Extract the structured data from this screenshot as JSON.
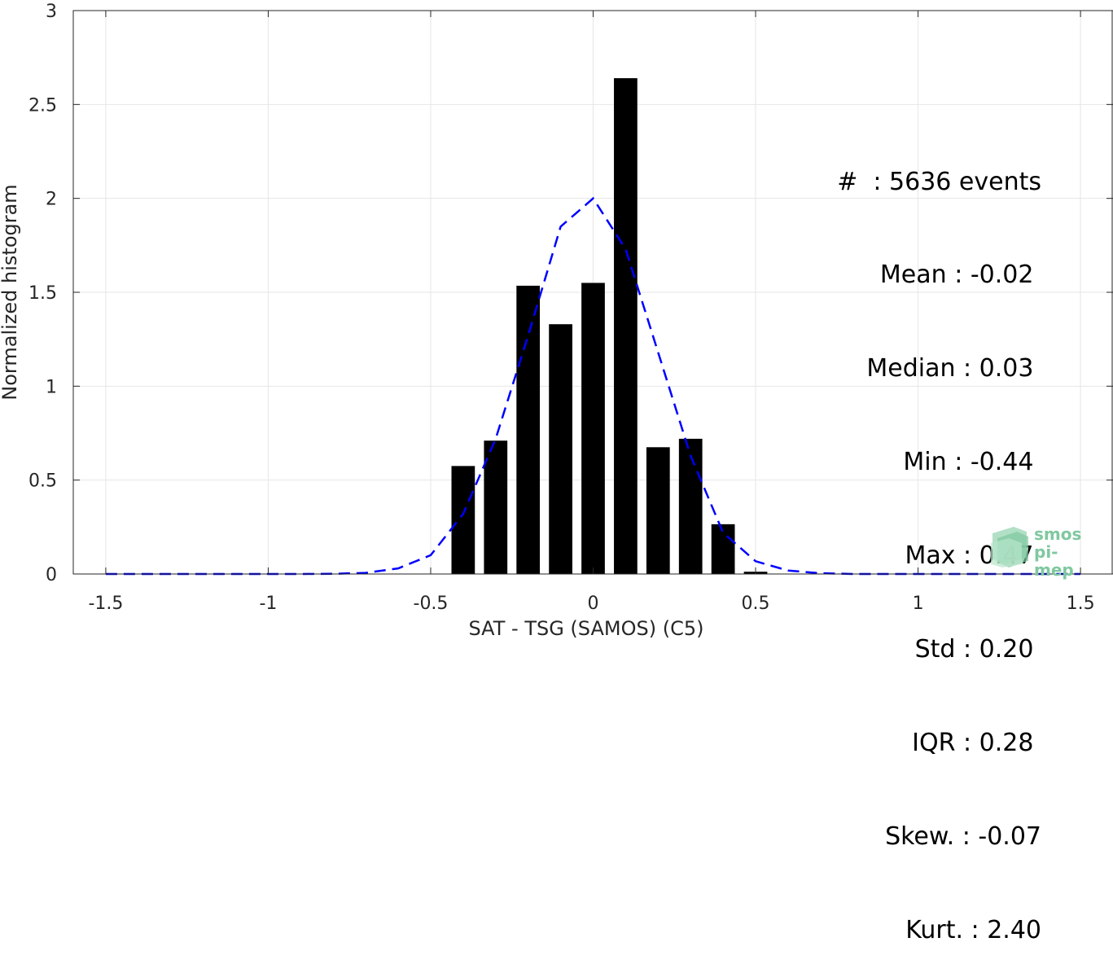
{
  "chart_data": {
    "type": "bar",
    "xlabel": "SAT - TSG (SAMOS) (C5)",
    "ylabel": "Normalized histogram",
    "xlim": [
      -1.6,
      1.6
    ],
    "ylim": [
      0,
      3
    ],
    "xticks": [
      "-1.5",
      "-1",
      "-0.5",
      "0",
      "0.5",
      "1",
      "1.5"
    ],
    "yticks": [
      "0",
      "0.5",
      "1",
      "1.5",
      "2",
      "2.5",
      "3"
    ],
    "grid": true,
    "bar_color": "#000000",
    "bars": [
      {
        "x": -0.4,
        "y": 0.575
      },
      {
        "x": -0.3,
        "y": 0.71
      },
      {
        "x": -0.2,
        "y": 1.535
      },
      {
        "x": -0.1,
        "y": 1.33
      },
      {
        "x": 0.0,
        "y": 1.55
      },
      {
        "x": 0.1,
        "y": 2.64
      },
      {
        "x": 0.2,
        "y": 0.675
      },
      {
        "x": 0.3,
        "y": 0.72
      },
      {
        "x": 0.4,
        "y": 0.265
      },
      {
        "x": 0.5,
        "y": 0.012
      }
    ],
    "fit_color": "#0000ff",
    "fit_curve": [
      {
        "x": -1.5,
        "y": 0.0
      },
      {
        "x": -1.4,
        "y": 0.0
      },
      {
        "x": -1.3,
        "y": 0.0
      },
      {
        "x": -1.2,
        "y": 0.0
      },
      {
        "x": -1.1,
        "y": 0.0
      },
      {
        "x": -1.0,
        "y": 0.0
      },
      {
        "x": -0.9,
        "y": 0.0
      },
      {
        "x": -0.8,
        "y": 0.001
      },
      {
        "x": -0.7,
        "y": 0.006
      },
      {
        "x": -0.6,
        "y": 0.03
      },
      {
        "x": -0.5,
        "y": 0.1
      },
      {
        "x": -0.4,
        "y": 0.32
      },
      {
        "x": -0.3,
        "y": 0.72
      },
      {
        "x": -0.2,
        "y": 1.27
      },
      {
        "x": -0.1,
        "y": 1.85
      },
      {
        "x": 0.0,
        "y": 2.0
      },
      {
        "x": 0.1,
        "y": 1.73
      },
      {
        "x": 0.2,
        "y": 1.18
      },
      {
        "x": 0.3,
        "y": 0.63
      },
      {
        "x": 0.4,
        "y": 0.22
      },
      {
        "x": 0.5,
        "y": 0.068
      },
      {
        "x": 0.6,
        "y": 0.018
      },
      {
        "x": 0.7,
        "y": 0.004
      },
      {
        "x": 0.8,
        "y": 0.0
      },
      {
        "x": 0.9,
        "y": 0.0
      },
      {
        "x": 1.0,
        "y": 0.0
      },
      {
        "x": 1.1,
        "y": 0.0
      },
      {
        "x": 1.2,
        "y": 0.0
      },
      {
        "x": 1.3,
        "y": 0.0
      },
      {
        "x": 1.4,
        "y": 0.0
      },
      {
        "x": 1.5,
        "y": 0.0
      }
    ],
    "annotations": [
      "#  : 5636 events",
      "Mean : -0.02 ",
      "Median : 0.03 ",
      "Min : -0.44 ",
      "Max : 0.47 ",
      "Std : 0.20 ",
      "IQR : 0.28 ",
      "Skew. : -0.07",
      "Kurt. : 2.40"
    ]
  },
  "logo": {
    "line1": "smos",
    "line2": "pi-mep"
  }
}
